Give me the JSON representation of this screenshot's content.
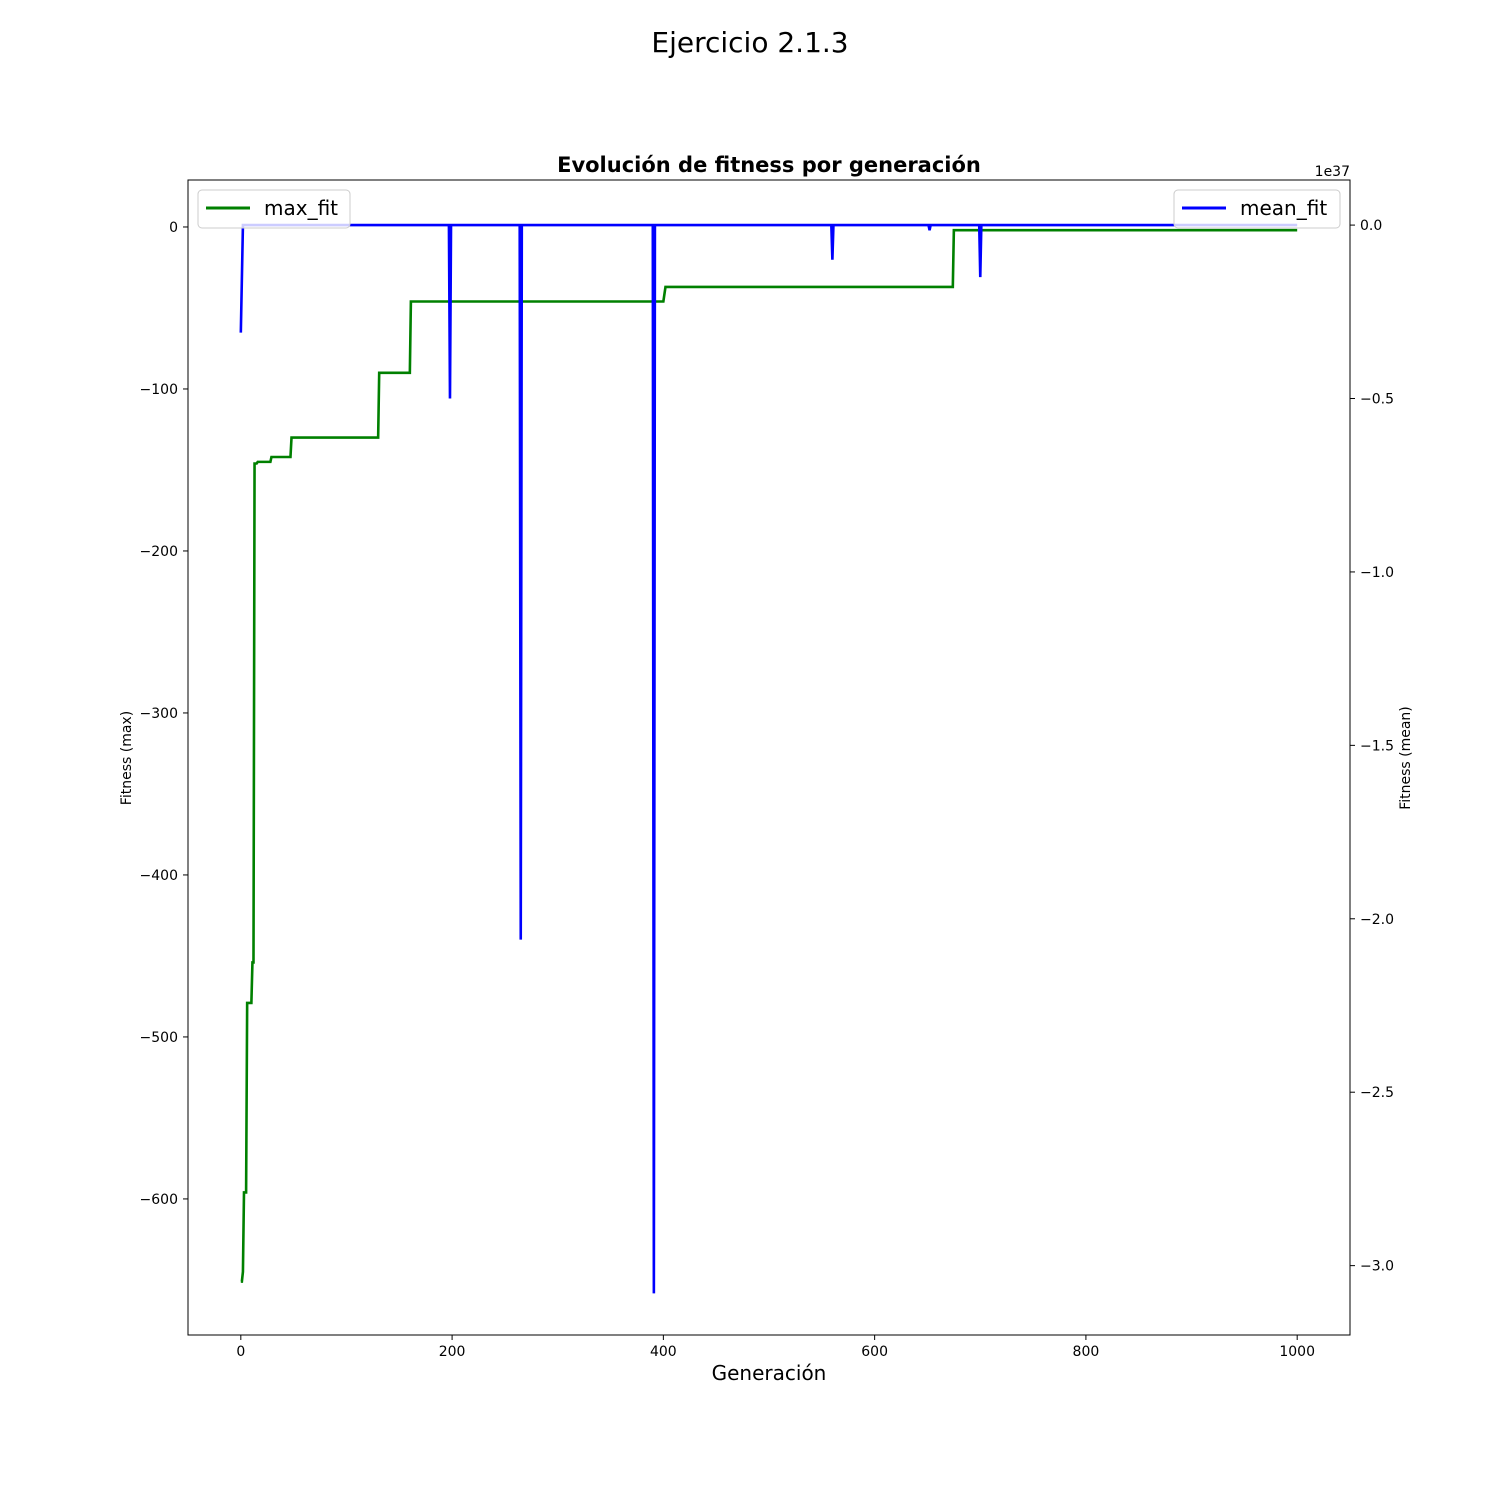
{
  "figure": {
    "suptitle": "Ejercicio 2.1.3"
  },
  "chart_data": {
    "type": "line",
    "title": "Evolución de fitness por generación",
    "xlabel": "Generación",
    "ylabel_left": "Fitness (max)",
    "ylabel_right": "Fitness (mean)",
    "right_axis_offset": "1e37",
    "xlim": [
      -50,
      1050
    ],
    "ylim_left": [
      -684,
      29
    ],
    "ylim_right": [
      -3.2,
      0.13
    ],
    "x_ticks": [
      0,
      200,
      400,
      600,
      800,
      1000
    ],
    "y_left_ticks": [
      0,
      -100,
      -200,
      -300,
      -400,
      -500,
      -600
    ],
    "y_left_tick_labels": [
      "0",
      "−100",
      "−200",
      "−300",
      "−400",
      "−500",
      "−600"
    ],
    "y_right_ticks": [
      0.0,
      -0.5,
      -1.0,
      -1.5,
      -2.0,
      -2.5,
      -3.0
    ],
    "y_right_tick_labels": [
      "0.0",
      "−0.5",
      "−1.0",
      "−1.5",
      "−2.0",
      "−2.5",
      "−3.0"
    ],
    "grid": false,
    "series": [
      {
        "name": "max_fit",
        "axis": "left",
        "color": "#008000",
        "legend_position": "upper left",
        "points": [
          [
            0,
            -651
          ],
          [
            1,
            -651
          ],
          [
            2,
            -645
          ],
          [
            3,
            -596
          ],
          [
            5,
            -596
          ],
          [
            6,
            -479
          ],
          [
            10,
            -479
          ],
          [
            11,
            -454
          ],
          [
            12,
            -454
          ],
          [
            13,
            -146
          ],
          [
            15,
            -146
          ],
          [
            16,
            -145
          ],
          [
            28,
            -145
          ],
          [
            29,
            -142
          ],
          [
            47,
            -142
          ],
          [
            48,
            -130
          ],
          [
            130,
            -130
          ],
          [
            131,
            -90
          ],
          [
            160,
            -90
          ],
          [
            161,
            -46
          ],
          [
            400,
            -46
          ],
          [
            402,
            -37
          ],
          [
            674,
            -37
          ],
          [
            675,
            -2
          ],
          [
            1000,
            -2
          ]
        ]
      },
      {
        "name": "mean_fit",
        "axis": "right",
        "color": "#0000ff",
        "legend_position": "upper right",
        "points": [
          [
            0,
            -0.31
          ],
          [
            2,
            0.0
          ],
          [
            197,
            0.0
          ],
          [
            198,
            -0.5
          ],
          [
            199,
            0.0
          ],
          [
            264,
            0.0
          ],
          [
            265,
            -2.06
          ],
          [
            266,
            0.0
          ],
          [
            390,
            0.0
          ],
          [
            391,
            -3.08
          ],
          [
            392,
            0.0
          ],
          [
            559,
            0.0
          ],
          [
            560,
            -0.1
          ],
          [
            561,
            0.0
          ],
          [
            651,
            0.0
          ],
          [
            652,
            -0.015
          ],
          [
            653,
            0.0
          ],
          [
            699,
            0.0
          ],
          [
            700,
            -0.15
          ],
          [
            701,
            0.0
          ],
          [
            1000,
            0.0
          ]
        ]
      }
    ]
  }
}
